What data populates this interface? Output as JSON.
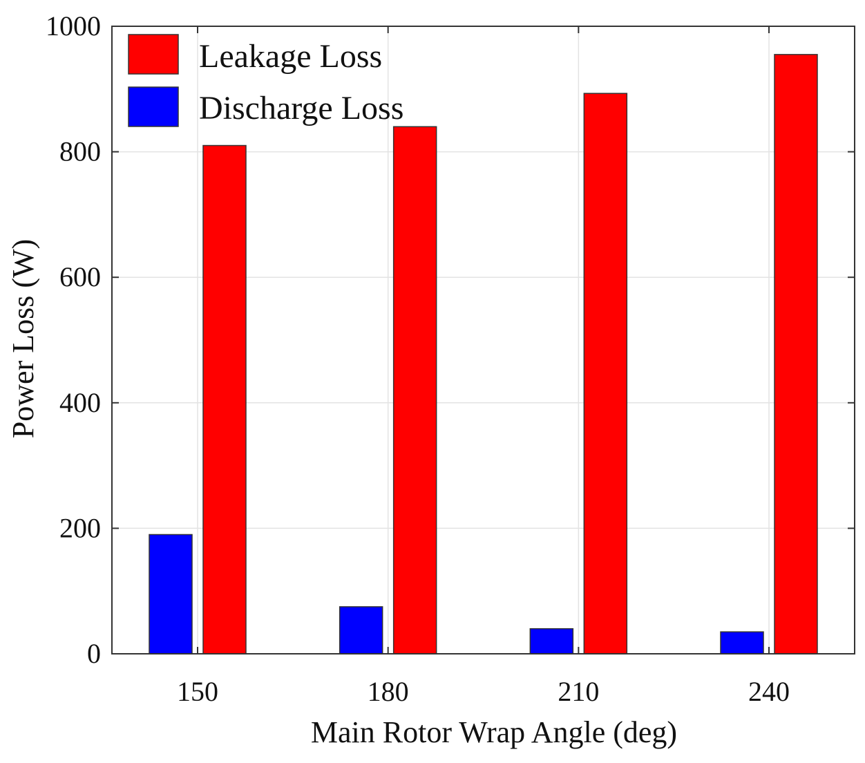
{
  "chart_data": {
    "type": "bar",
    "title": "",
    "xlabel": "Main Rotor Wrap Angle (deg)",
    "ylabel": "Power Loss (W)",
    "categories": [
      "150",
      "180",
      "210",
      "240"
    ],
    "ylim": [
      0,
      1000
    ],
    "yticks": [
      "0",
      "200",
      "400",
      "600",
      "800",
      "1000"
    ],
    "grid": true,
    "legend_position": "top-left",
    "series": [
      {
        "name": "Leakage Loss",
        "color": "#ff0000",
        "values": [
          810,
          840,
          893,
          955
        ]
      },
      {
        "name": "Discharge Loss",
        "color": "#0000ff",
        "values": [
          190,
          75,
          40,
          35
        ]
      }
    ]
  }
}
